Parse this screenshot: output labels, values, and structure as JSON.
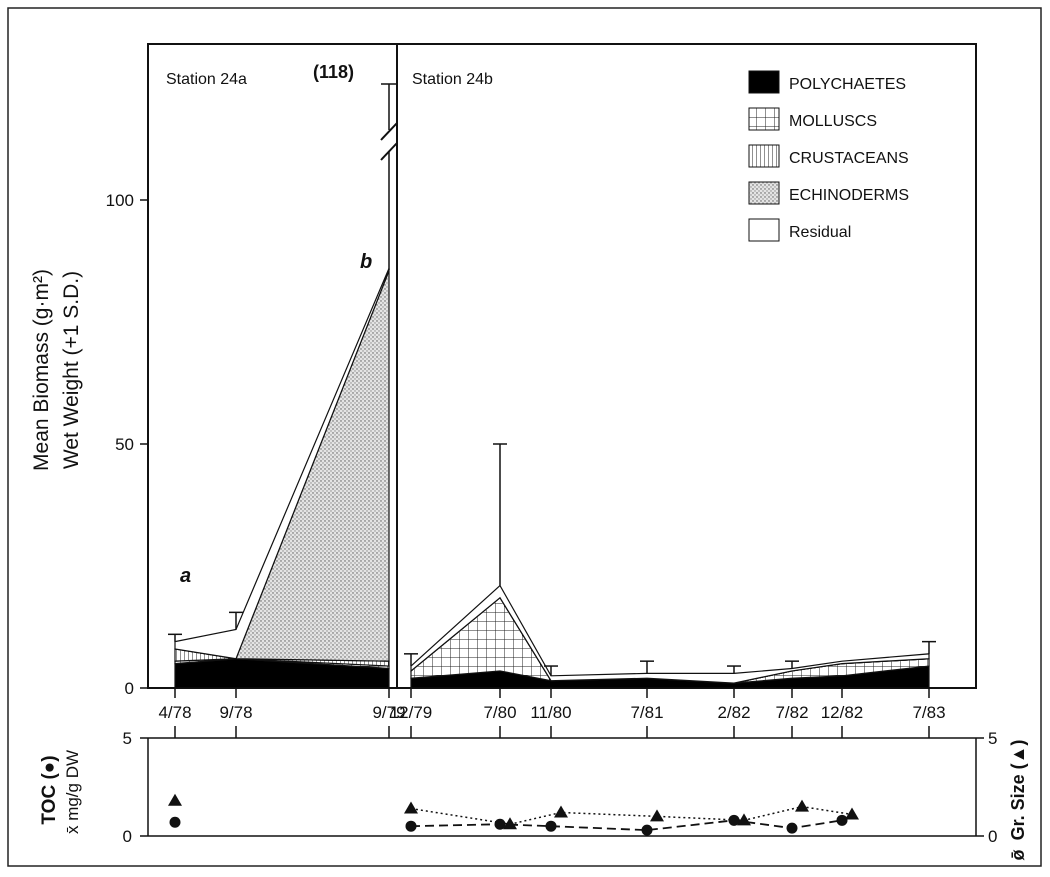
{
  "chart_data": [
    {
      "type": "area",
      "ylabel_line1": "Mean Biomass (g·m²)",
      "ylabel_line2": "Wet Weight (+1 S.D.)",
      "ylim": [
        0,
        128
      ],
      "yticks": [
        "0",
        "50",
        "100"
      ],
      "panels": [
        "Station 24a",
        "Station 24b"
      ],
      "break_value_label": "(118)",
      "annotations": [
        "a",
        "b"
      ],
      "x": [
        "4/78",
        "9/78",
        "9/79",
        "12/79",
        "7/80",
        "11/80",
        "7/81",
        "2/82",
        "7/82",
        "12/82",
        "7/83"
      ],
      "legend": [
        "POLYCHAETES",
        "MOLLUSCS",
        "CRUSTACEANS",
        "ECHINODERMS",
        "Residual"
      ],
      "series": [
        {
          "name": "POLYCHAETES",
          "values": [
            5,
            6,
            4,
            2,
            3.5,
            1.5,
            2,
            1,
            2,
            2.5,
            4.5
          ]
        },
        {
          "name": "MOLLUSCS",
          "values": [
            0.5,
            0,
            0.5,
            1.5,
            15,
            0,
            0,
            0,
            1.5,
            2.5,
            1.5
          ]
        },
        {
          "name": "CRUSTACEANS",
          "values": [
            2.5,
            0,
            1,
            0,
            0,
            0,
            0,
            0,
            0,
            0,
            0
          ]
        },
        {
          "name": "ECHINODERMS",
          "values": [
            0,
            0,
            80,
            0,
            0,
            0,
            0,
            0,
            0,
            0,
            0
          ]
        },
        {
          "name": "Residual",
          "values": [
            1.5,
            6,
            0.5,
            1,
            2.5,
            1,
            1,
            2,
            0.5,
            0.5,
            1
          ]
        }
      ],
      "error_top": [
        11,
        15.5,
        118,
        7,
        50,
        4.5,
        5.5,
        4.5,
        5.5,
        null,
        9.5
      ]
    },
    {
      "type": "line",
      "ylabel_left": "TOC (●)",
      "ylabel_left2": "x̄ mg/g DW",
      "ylabel_right": "Gr. Size (▲)",
      "ylabel_right2": "ø̄",
      "ylim": [
        0,
        5
      ],
      "yticks": [
        "0",
        "5"
      ],
      "series": [
        {
          "name": "TOC",
          "x": [
            "4/78",
            "12/79",
            "7/80",
            "11/80",
            "7/81",
            "2/82",
            "7/82",
            "12/82"
          ],
          "values": [
            0.7,
            0.5,
            0.6,
            0.5,
            0.3,
            0.8,
            0.4,
            0.8
          ]
        },
        {
          "name": "Gr. Size",
          "x": [
            "4/78",
            "12/79",
            "7/80",
            "11/80",
            "7/81",
            "2/82",
            "7/82",
            "12/82"
          ],
          "values": [
            1.8,
            1.4,
            0.6,
            1.2,
            1.0,
            0.8,
            1.5,
            1.1
          ]
        }
      ]
    }
  ]
}
